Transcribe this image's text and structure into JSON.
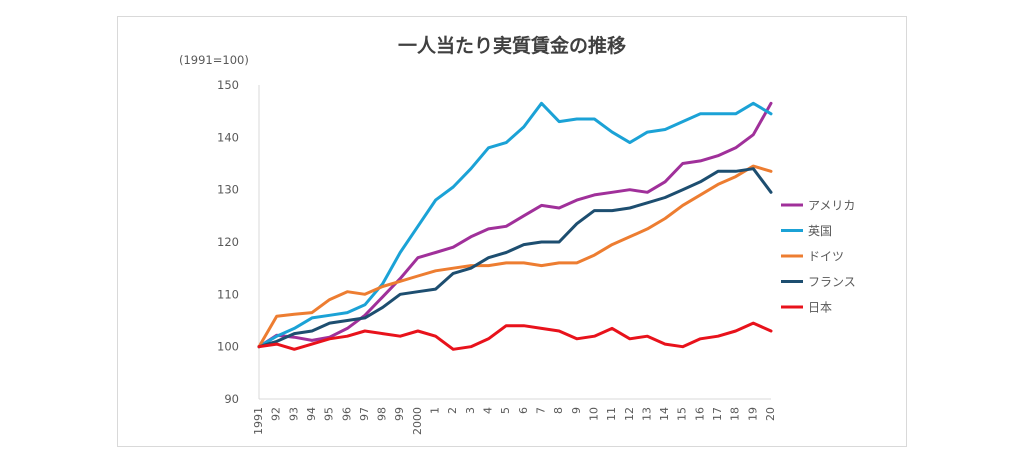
{
  "chart_data": {
    "type": "line",
    "title": "一人当たり実質賃金の推移",
    "unit_label": "(1991=100)",
    "ylim": [
      90,
      150
    ],
    "yticks": [
      90,
      100,
      110,
      120,
      130,
      140,
      150
    ],
    "categories": [
      "1991",
      "92",
      "93",
      "94",
      "95",
      "96",
      "97",
      "98",
      "99",
      "2000",
      "1",
      "2",
      "3",
      "4",
      "5",
      "6",
      "7",
      "8",
      "9",
      "10",
      "11",
      "12",
      "13",
      "14",
      "15",
      "16",
      "17",
      "18",
      "19",
      "20"
    ],
    "grid": false,
    "legend_position": "right",
    "series": [
      {
        "name": "アメリカ",
        "color": "#a0309a",
        "values": [
          100,
          102.2,
          101.8,
          101.2,
          101.8,
          103.5,
          106,
          109.5,
          113,
          117,
          118,
          119,
          121,
          122.5,
          123,
          125,
          127,
          126.5,
          128,
          129,
          129.5,
          130,
          129.5,
          131.5,
          135,
          135.5,
          136.5,
          138,
          140.5,
          146.5
        ]
      },
      {
        "name": "英国",
        "color": "#1ba2d6",
        "values": [
          100,
          102,
          103.5,
          105.5,
          106,
          106.5,
          108,
          112,
          118,
          123,
          128,
          130.5,
          134,
          138,
          139,
          142,
          146.5,
          143,
          143.5,
          143.5,
          141,
          139,
          141,
          141.5,
          143,
          144.5,
          144.5,
          144.5,
          146.5,
          144.5
        ]
      },
      {
        "name": "ドイツ",
        "color": "#ed7d31",
        "values": [
          100,
          105.8,
          106.2,
          106.5,
          109,
          110.5,
          110,
          111.5,
          112.5,
          113.5,
          114.5,
          115,
          115.5,
          115.5,
          116,
          116,
          115.5,
          116,
          116,
          117.5,
          119.5,
          121,
          122.5,
          124.5,
          127,
          129,
          131,
          132.5,
          134.5,
          133.5
        ]
      },
      {
        "name": "フランス",
        "color": "#1d4e70",
        "values": [
          100,
          101,
          102.5,
          103,
          104.5,
          105,
          105.5,
          107.5,
          110,
          110.5,
          111,
          114,
          115,
          117,
          118,
          119.5,
          120,
          120,
          123.5,
          126,
          126,
          126.5,
          127.5,
          128.5,
          130,
          131.5,
          133.5,
          133.5,
          134,
          129.5
        ]
      },
      {
        "name": "日本",
        "color": "#e8121b",
        "values": [
          100,
          100.5,
          99.5,
          100.5,
          101.5,
          102,
          103,
          102.5,
          102,
          103,
          102,
          99.5,
          100,
          101.5,
          104,
          104,
          103.5,
          103,
          101.5,
          102,
          103.5,
          101.5,
          102,
          100.5,
          100,
          101.5,
          102,
          103,
          104.5,
          103
        ]
      }
    ]
  }
}
